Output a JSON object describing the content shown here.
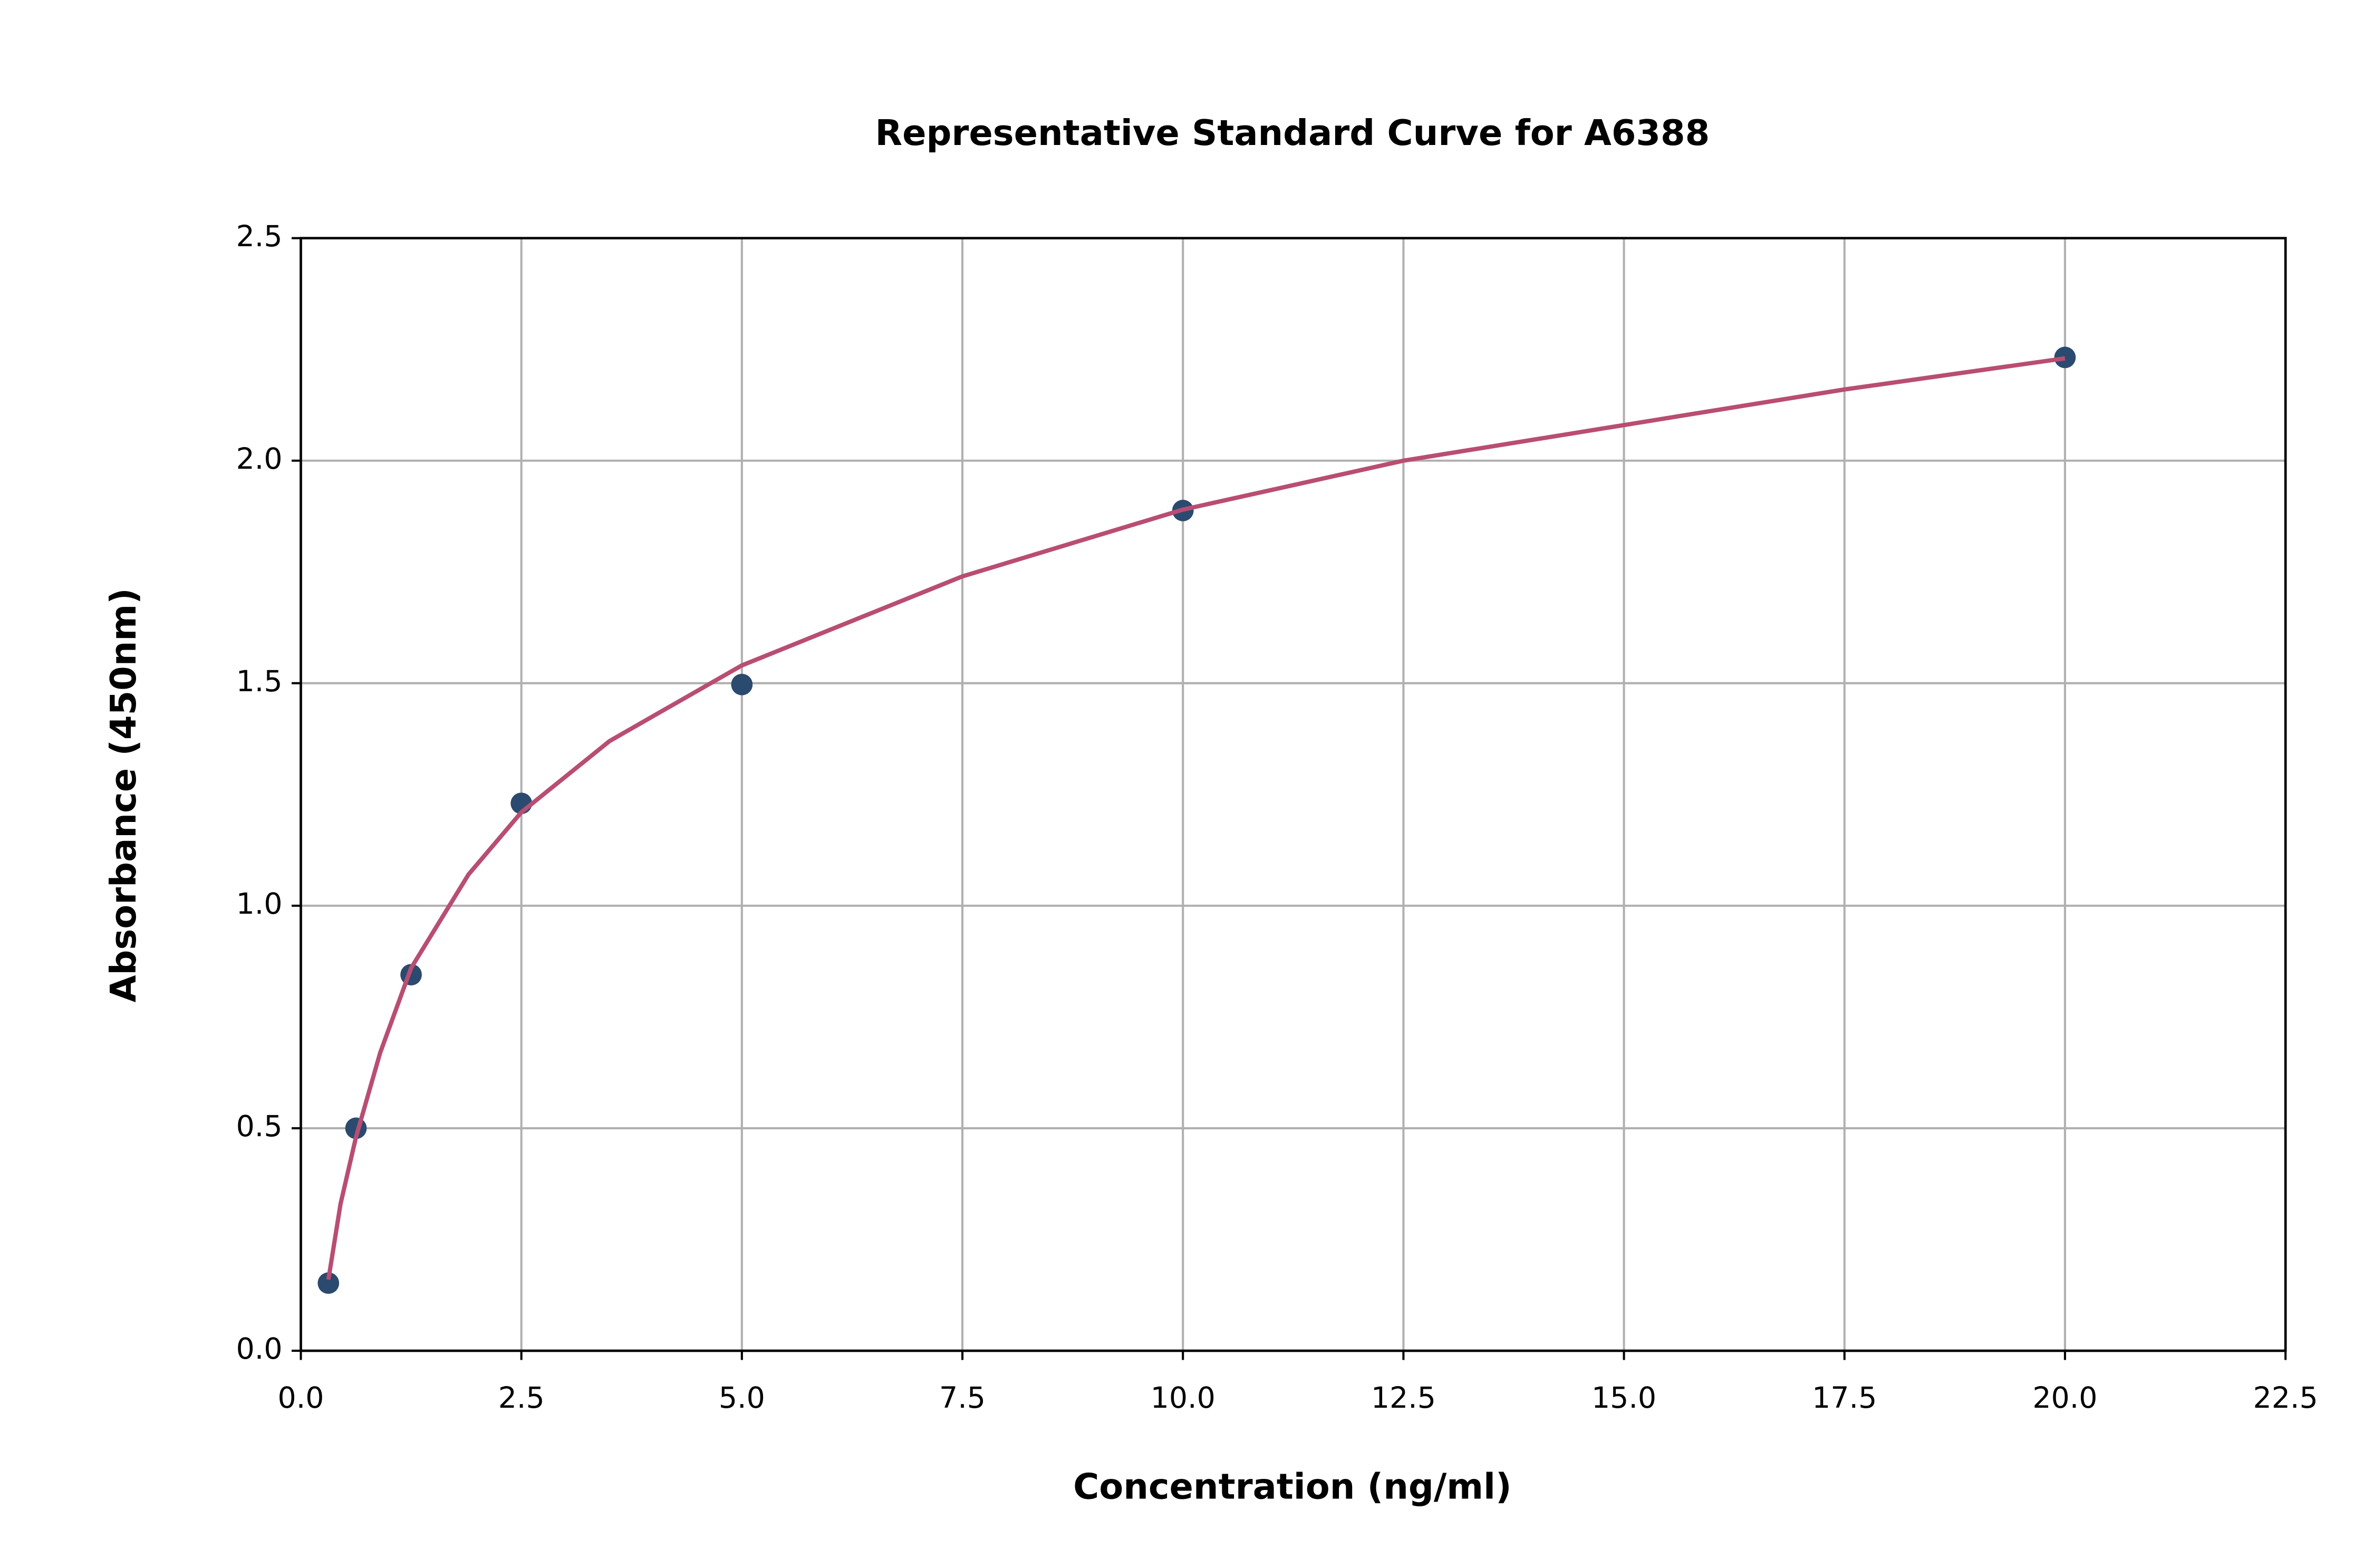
{
  "chart_data": {
    "type": "scatter",
    "title": "Representative Standard Curve for A6388",
    "x_label": "Concentration (ng/ml)",
    "y_label": "Absorbance (450nm)",
    "xlim": [
      0,
      22.5
    ],
    "ylim": [
      0,
      2.5
    ],
    "xticks": [
      {
        "value": 0,
        "label": "0.0"
      },
      2.5,
      {
        "value": 5,
        "label": "5.0"
      },
      7.5,
      {
        "value": 10,
        "label": "10.0"
      },
      12.5,
      {
        "value": 15,
        "label": "15.0"
      },
      17.5,
      {
        "value": 20,
        "label": "20.0"
      },
      22.5
    ],
    "yticks": [
      {
        "value": 0,
        "label": "0.0"
      },
      0.5,
      {
        "value": 1,
        "label": "1.0"
      },
      1.5,
      {
        "value": 2,
        "label": "2.0"
      },
      2.5
    ],
    "grid": true,
    "series": [
      {
        "style": "marker",
        "color": "#2b4a6f",
        "x": [
          0.3125,
          0.625,
          1.25,
          2.5,
          5,
          10,
          20
        ],
        "values": [
          0.152,
          0.5,
          0.845,
          1.23,
          1.497,
          1.888,
          2.232
        ]
      },
      {
        "style": "line",
        "color": "#b94d72",
        "x": [
          0.3125,
          0.45,
          0.625,
          0.9,
          1.25,
          1.9,
          2.5,
          3.5,
          5,
          7.5,
          10,
          12.5,
          15,
          17.5,
          20
        ],
        "values": [
          0.16,
          0.33,
          0.48,
          0.67,
          0.86,
          1.07,
          1.21,
          1.37,
          1.54,
          1.74,
          1.89,
          2.0,
          2.08,
          2.16,
          2.23
        ]
      }
    ]
  }
}
